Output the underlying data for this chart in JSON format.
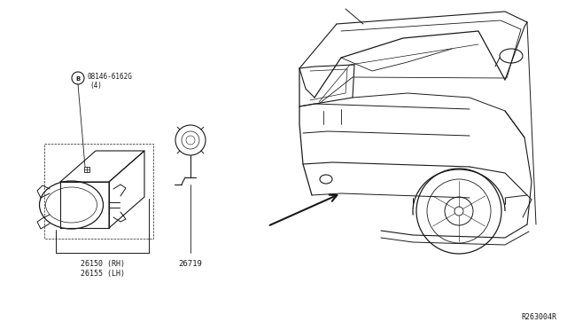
{
  "bg_color": "#ffffff",
  "line_color": "#1a1a1a",
  "part_labels": {
    "fog_lamp_rh": "26150 (RH)",
    "fog_lamp_lh": "26155 (LH)",
    "bulb": "26719",
    "bolt": "08146-6162G",
    "bolt_qty": "(4)"
  },
  "diagram_id": "R263004R"
}
